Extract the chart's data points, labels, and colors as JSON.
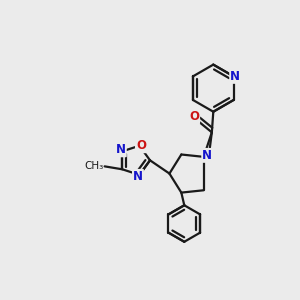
{
  "bg_color": "#ebebeb",
  "bond_color": "#1a1a1a",
  "N_color": "#1414cc",
  "O_color": "#cc1414",
  "fs": 8.5,
  "lw": 1.6,
  "dbo": 0.05,
  "xlim": [
    0,
    10
  ],
  "ylim": [
    0,
    10
  ]
}
